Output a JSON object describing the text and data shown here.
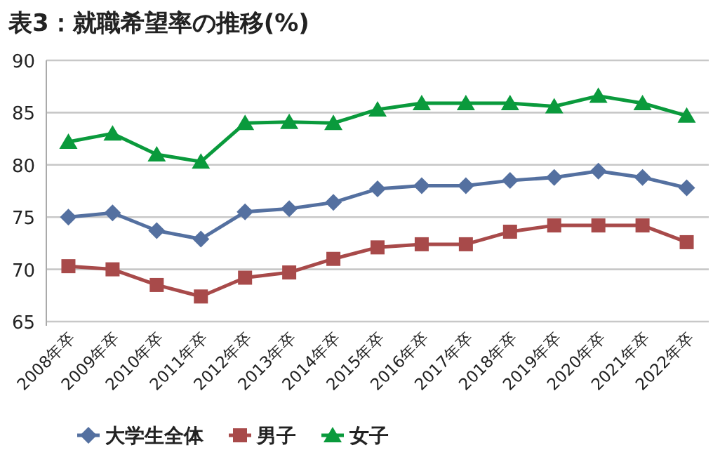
{
  "chart_data": {
    "type": "line",
    "title": "表3：就職希望率の推移(%)",
    "categories": [
      "2008年卒",
      "2009年卒",
      "2010年卒",
      "2011年卒",
      "2012年卒",
      "2013年卒",
      "2014年卒",
      "2015年卒",
      "2016年卒",
      "2017年卒",
      "2018年卒",
      "2019年卒",
      "2020年卒",
      "2021年卒",
      "2022年卒"
    ],
    "series": [
      {
        "name": "大学生全体",
        "color": "#5470a0",
        "marker": "diamond",
        "values": [
          75.0,
          75.4,
          73.7,
          72.9,
          75.5,
          75.8,
          76.4,
          77.7,
          78.0,
          78.0,
          78.5,
          78.8,
          79.4,
          78.8,
          77.8
        ]
      },
      {
        "name": "男子",
        "color": "#a84a4a",
        "marker": "square",
        "values": [
          70.3,
          70.0,
          68.5,
          67.4,
          69.2,
          69.7,
          71.0,
          72.1,
          72.4,
          72.4,
          73.6,
          74.2,
          74.2,
          74.2,
          72.6
        ]
      },
      {
        "name": "女子",
        "color": "#0a9a3c",
        "marker": "triangle",
        "values": [
          82.2,
          83.0,
          81.0,
          80.3,
          84.0,
          84.1,
          84.0,
          85.3,
          85.9,
          85.9,
          85.9,
          85.6,
          86.6,
          85.9,
          84.7
        ]
      }
    ],
    "ylim": [
      65,
      90
    ],
    "yticks": [
      65,
      70,
      75,
      80,
      85,
      90
    ],
    "grid": "y",
    "legend": "bottom"
  }
}
